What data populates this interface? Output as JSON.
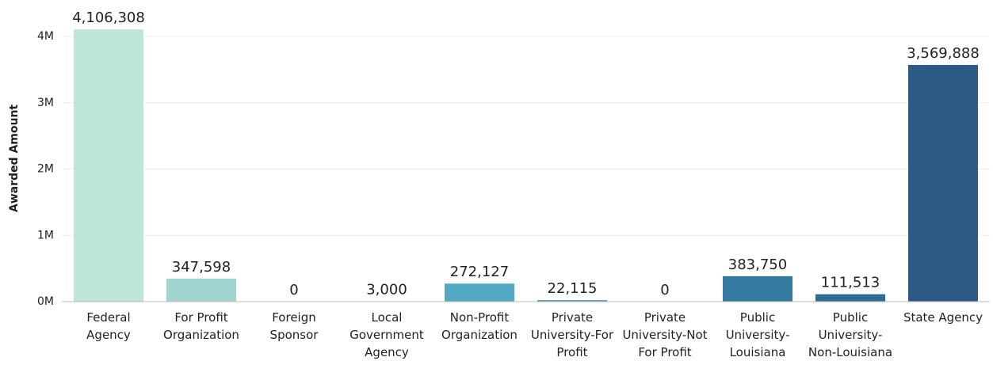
{
  "chart_data": {
    "type": "bar",
    "y_axis_label": "Awarded Amount",
    "categories": [
      "Federal Agency",
      "For Profit Organization",
      "Foreign Sponsor",
      "Local Government Agency",
      "Non-Profit Organization",
      "Private University-For Profit",
      "Private University-Not For Profit",
      "Public University-Louisiana",
      "Public University-Non-Louisiana",
      "State Agency"
    ],
    "values": [
      4106308,
      347598,
      0,
      3000,
      272127,
      22115,
      0,
      383750,
      111513,
      3569888
    ],
    "value_labels": [
      "4,106,308",
      "347,598",
      "0",
      "3,000",
      "272,127",
      "22,115",
      "0",
      "383,750",
      "111,513",
      "3,569,888"
    ],
    "colors": [
      "#bde5d9",
      "#9fd4d0",
      "#82c7cc",
      "#68b9c6",
      "#52a9c1",
      "#4596b5",
      "#3c87aa",
      "#34799f",
      "#2f6b93",
      "#2c5a85"
    ],
    "ylim": [
      0,
      4500000
    ],
    "yticks": [
      {
        "value": 0,
        "label": "0M"
      },
      {
        "value": 1000000,
        "label": "1M"
      },
      {
        "value": 2000000,
        "label": "2M"
      },
      {
        "value": 3000000,
        "label": "3M"
      },
      {
        "value": 4000000,
        "label": "4M"
      }
    ],
    "grid": true
  }
}
